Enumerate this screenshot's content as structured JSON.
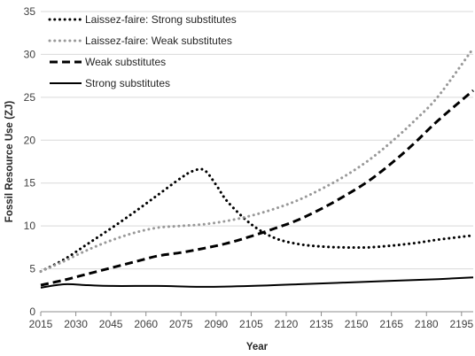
{
  "chart_data": {
    "type": "line",
    "title": "",
    "xlabel": "Year",
    "ylabel": "Fossil Resource Use (ZJ)",
    "xlim": [
      2015,
      2200
    ],
    "ylim": [
      0,
      35
    ],
    "xticks": [
      2015,
      2030,
      2045,
      2060,
      2075,
      2090,
      2105,
      2120,
      2135,
      2150,
      2165,
      2180,
      2195
    ],
    "yticks": [
      0,
      5,
      10,
      15,
      20,
      25,
      30,
      35
    ],
    "grid": {
      "y": true,
      "x": false
    },
    "legend_position": "top-left",
    "series": [
      {
        "name": "Laissez-faire: Strong substitutes",
        "style": "dotted",
        "color": "#000000",
        "x": [
          2015,
          2025,
          2035,
          2045,
          2055,
          2065,
          2075,
          2080,
          2085,
          2090,
          2095,
          2105,
          2115,
          2125,
          2135,
          2145,
          2155,
          2165,
          2175,
          2185,
          2200
        ],
        "y": [
          4.7,
          6.1,
          7.9,
          9.7,
          11.6,
          13.6,
          15.6,
          16.4,
          16.5,
          14.8,
          12.8,
          10.2,
          8.6,
          7.9,
          7.6,
          7.5,
          7.5,
          7.7,
          8.0,
          8.4,
          8.9
        ]
      },
      {
        "name": "Laissez-faire: Weak substitutes",
        "style": "dotted",
        "color": "#999999",
        "x": [
          2015,
          2025,
          2035,
          2045,
          2055,
          2065,
          2075,
          2085,
          2095,
          2105,
          2115,
          2125,
          2135,
          2145,
          2155,
          2165,
          2175,
          2185,
          2200
        ],
        "y": [
          4.7,
          5.9,
          7.2,
          8.3,
          9.2,
          9.8,
          10.0,
          10.2,
          10.6,
          11.2,
          12.0,
          13.0,
          14.3,
          15.8,
          17.6,
          19.8,
          22.3,
          25.1,
          30.7
        ]
      },
      {
        "name": "Weak substitutes",
        "style": "dashed",
        "color": "#000000",
        "x": [
          2015,
          2025,
          2035,
          2045,
          2055,
          2065,
          2075,
          2085,
          2095,
          2105,
          2115,
          2125,
          2135,
          2145,
          2155,
          2165,
          2175,
          2185,
          2200
        ],
        "y": [
          3.1,
          3.7,
          4.4,
          5.1,
          5.8,
          6.5,
          6.9,
          7.4,
          8.0,
          8.8,
          9.7,
          10.7,
          12.0,
          13.5,
          15.2,
          17.3,
          19.7,
          22.3,
          25.8
        ]
      },
      {
        "name": "Strong substitutes",
        "style": "solid",
        "color": "#000000",
        "x": [
          2015,
          2025,
          2035,
          2045,
          2065,
          2085,
          2105,
          2125,
          2145,
          2165,
          2185,
          2200
        ],
        "y": [
          2.8,
          3.2,
          3.1,
          3.0,
          3.0,
          2.9,
          3.0,
          3.2,
          3.4,
          3.6,
          3.8,
          4.0
        ]
      }
    ]
  }
}
